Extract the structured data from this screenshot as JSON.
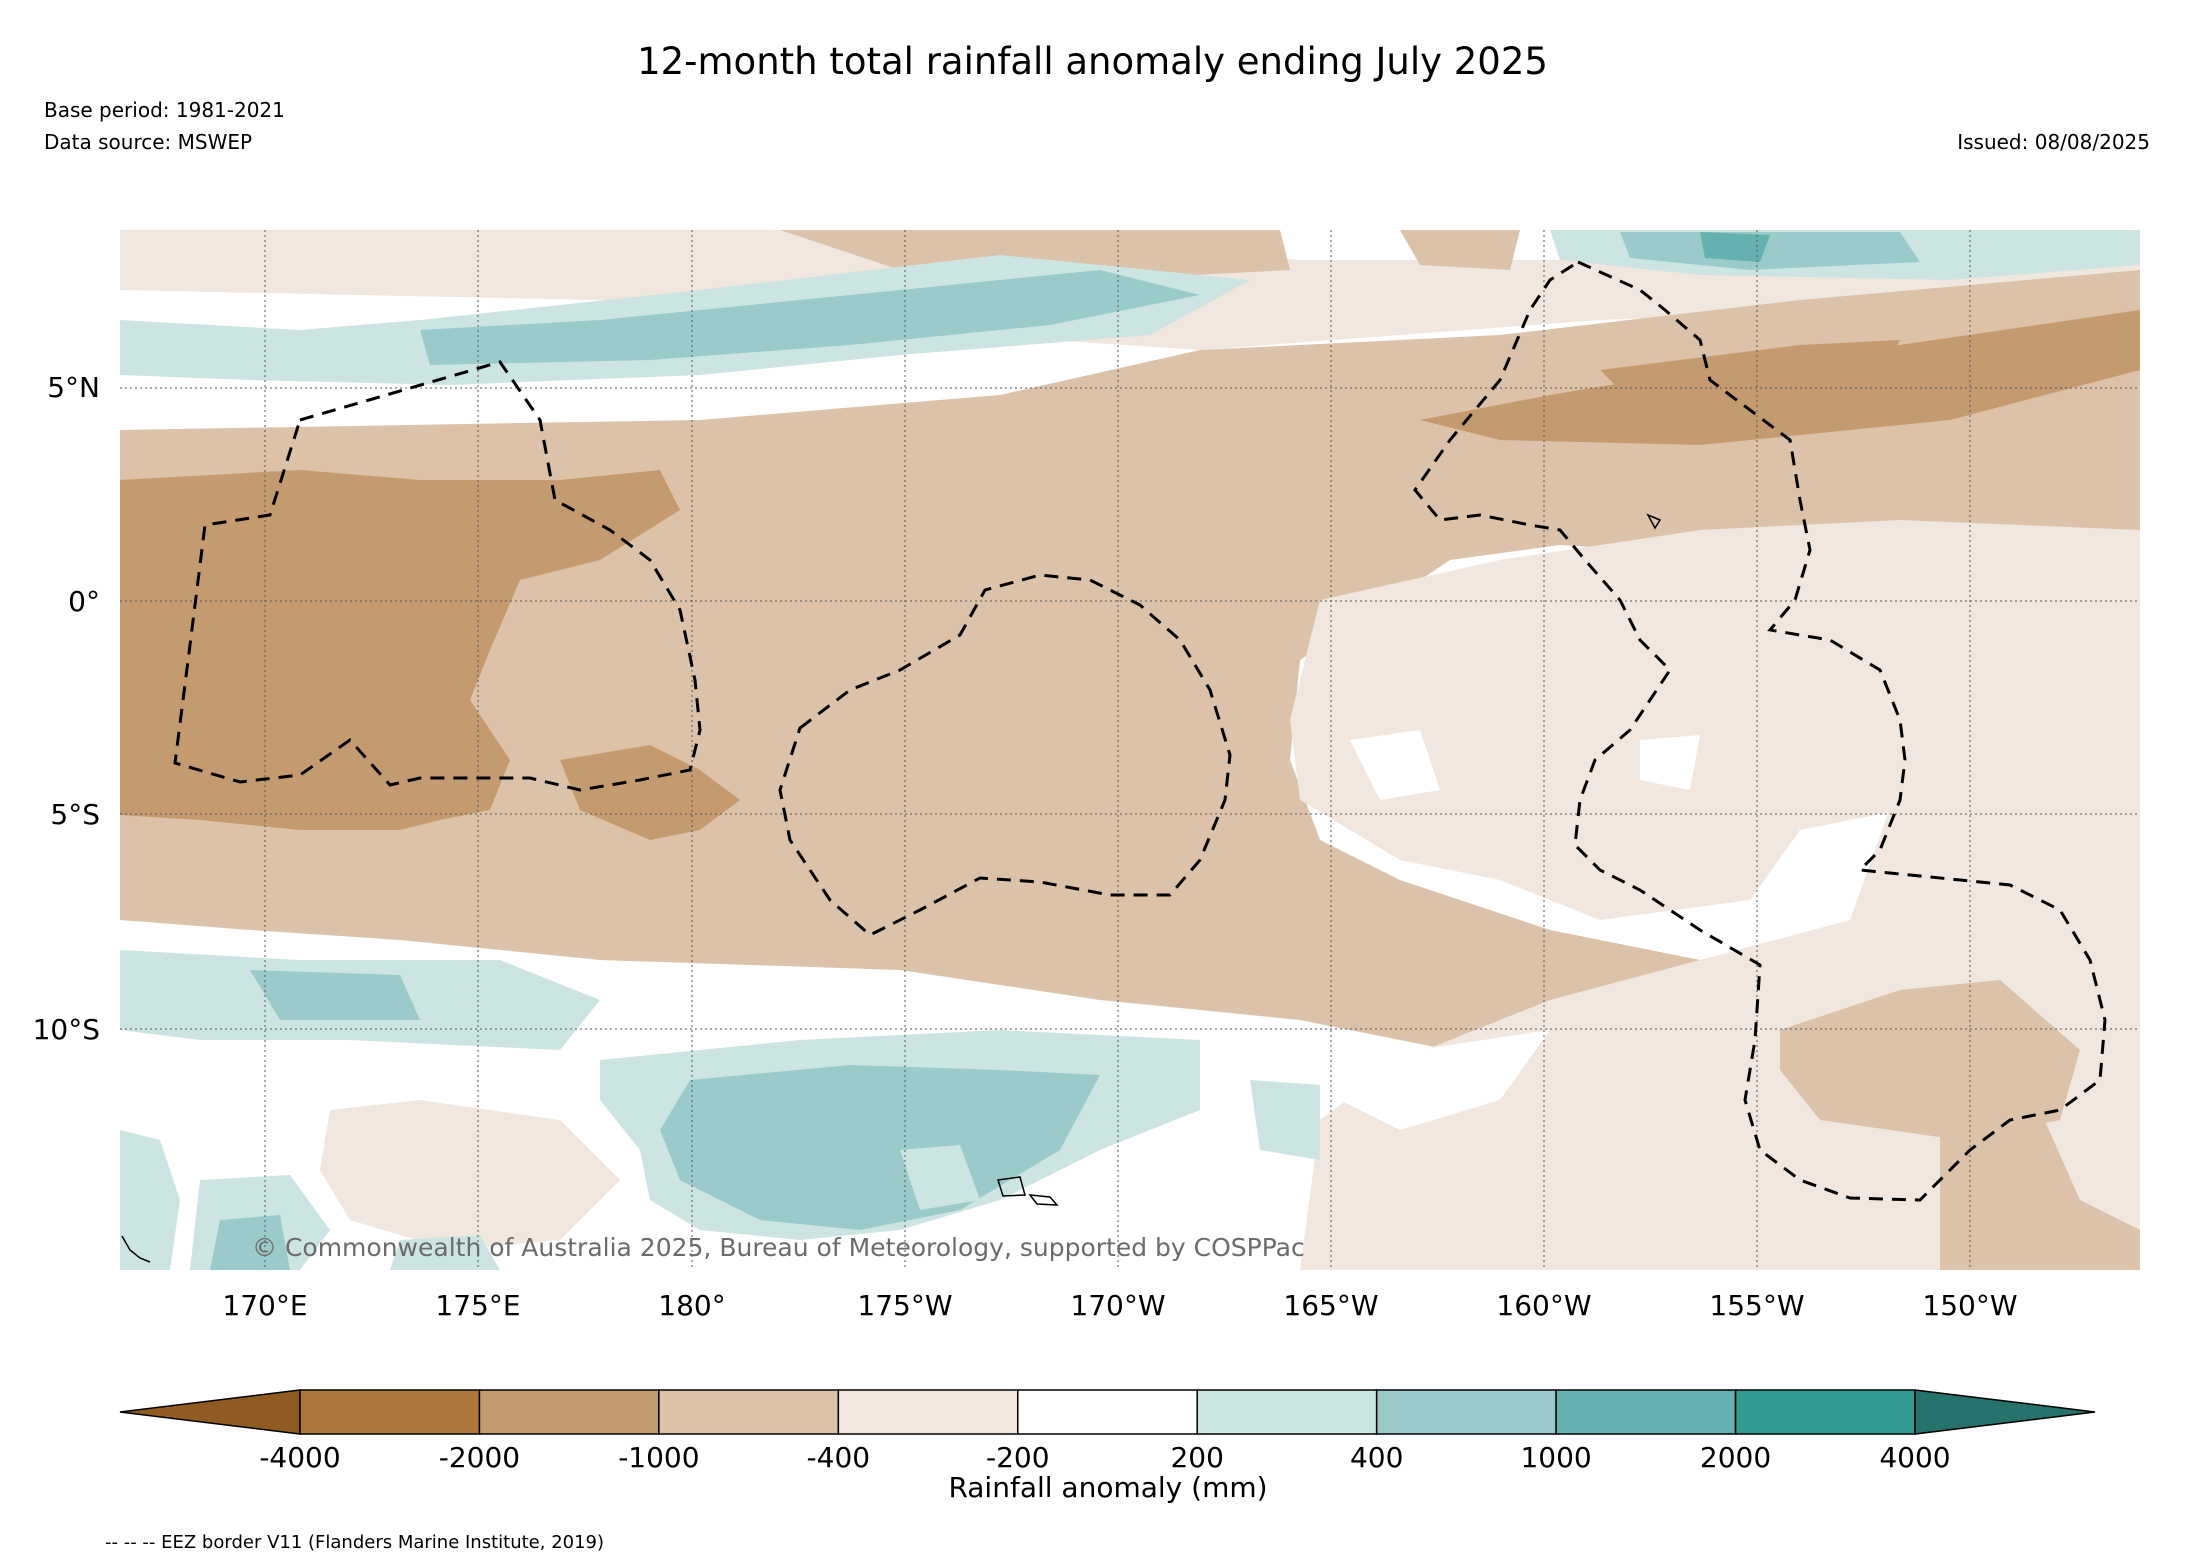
{
  "title": "12-month total rainfall anomaly ending July 2025",
  "base_period": "Base period: 1981-2021",
  "data_source": "Data source: MSWEP",
  "issued": "Issued: 08/08/2025",
  "copyright": "© Commonwealth of Australia 2025, Bureau of Meteorology, supported by COSPPac",
  "colorbar_label": "Rainfall anomaly (mm)",
  "colorbar_ticks": [
    "-4000",
    "-2000",
    "-1000",
    "-400",
    "-200",
    "200",
    "400",
    "1000",
    "2000",
    "4000"
  ],
  "colorbar_colors": [
    "#8f5b22",
    "#ad763a",
    "#c49b71",
    "#dbc2a8",
    "#f1e7de",
    "#ffffff",
    "#cce5e3",
    "#9acbca",
    "#65b1af",
    "#34998f",
    "#25716c"
  ],
  "lat_labels": [
    "5°N",
    "0°",
    "5°S",
    "10°S"
  ],
  "lon_labels": [
    "170°E",
    "175°E",
    "180°",
    "175°W",
    "170°W",
    "165°W",
    "160°W",
    "155°W",
    "150°W"
  ],
  "footer_note": "-- -- -- EEZ border V11 (Flanders Marine Institute, 2019)"
}
